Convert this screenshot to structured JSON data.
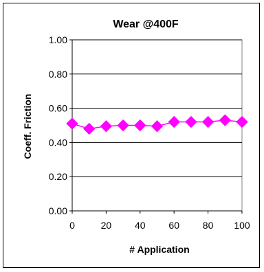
{
  "chart_data": {
    "type": "line",
    "title": "Wear @400F",
    "xlabel": "# Application",
    "ylabel": "Coeff. Friction",
    "xlim": [
      0,
      100
    ],
    "ylim": [
      0,
      1
    ],
    "x_ticks": [
      "0",
      "20",
      "40",
      "60",
      "80",
      "100"
    ],
    "y_ticks": [
      "0.00",
      "0.20",
      "0.40",
      "0.60",
      "0.80",
      "1.00"
    ],
    "grid": "horizontal",
    "legend": "none",
    "series": [
      {
        "color": "#ff00ff",
        "marker": "diamond",
        "x": [
          0,
          10,
          20,
          30,
          40,
          50,
          60,
          70,
          80,
          90,
          100
        ],
        "y": [
          0.51,
          0.48,
          0.495,
          0.5,
          0.5,
          0.495,
          0.52,
          0.52,
          0.52,
          0.53,
          0.52
        ]
      }
    ]
  }
}
